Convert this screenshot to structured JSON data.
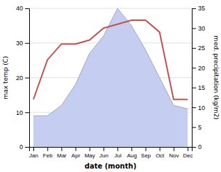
{
  "chart_data": {
    "type": "line",
    "xlabel": "date (month)",
    "ylabel": "max temp (C)",
    "y2label": "med. precipitation (kg/m2)",
    "categories": [
      "Jan",
      "Feb",
      "Mar",
      "Apr",
      "May",
      "Jun",
      "Jul",
      "Aug",
      "Sep",
      "Oct",
      "Nov",
      "Dec"
    ],
    "series": [
      {
        "type": "area",
        "color": "#c5cdf0",
        "values": [
          9,
          9,
          12,
          18,
          27,
          32,
          40,
          35,
          28,
          20,
          12,
          11
        ]
      },
      {
        "type": "line",
        "color": "#c0504d",
        "axis": "y2",
        "values": [
          12,
          22,
          26,
          26,
          27,
          30,
          31,
          32,
          32,
          29,
          12,
          12
        ]
      }
    ],
    "ylim": [
      0,
      40
    ],
    "yticks": [
      0,
      10,
      20,
      30,
      40
    ],
    "y2lim": [
      0,
      35
    ],
    "y2ticks": [
      0,
      5,
      10,
      15,
      20,
      25,
      30,
      35
    ],
    "grid": true
  }
}
